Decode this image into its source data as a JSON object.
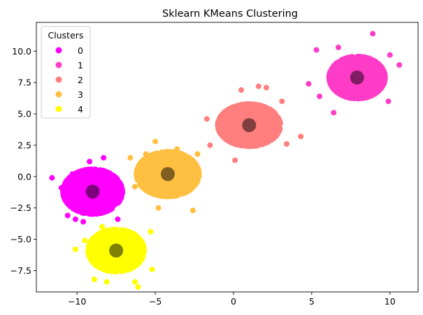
{
  "chart_data": {
    "type": "scatter",
    "title": "Sklearn KMeans Clustering",
    "xlabel": "",
    "ylabel": "",
    "xlim": [
      -12.6,
      11.8
    ],
    "ylim": [
      -9.2,
      12.3
    ],
    "x_ticks": [
      -10,
      -5,
      0,
      5,
      10
    ],
    "x_tick_labels": [
      "−10",
      "−5",
      "0",
      "5",
      "10"
    ],
    "y_ticks": [
      -7.5,
      -5.0,
      -2.5,
      0.0,
      2.5,
      5.0,
      7.5,
      10.0
    ],
    "y_tick_labels": [
      "−7.5",
      "−5.0",
      "−2.5",
      "0.0",
      "2.5",
      "5.0",
      "7.5",
      "10.0"
    ],
    "grid": false,
    "legend": {
      "title": "Clusters",
      "placement": "top-left",
      "entries": [
        "0",
        "1",
        "2",
        "3",
        "4"
      ]
    },
    "series": [
      {
        "name": "0",
        "color": "#ff00ff",
        "center": [
          -9.0,
          -1.2
        ],
        "spread": [
          0.9,
          0.85
        ],
        "outliers": [
          [
            -11.6,
            -0.1
          ],
          [
            -10.3,
            0.2
          ],
          [
            -9.2,
            1.2
          ],
          [
            -8.3,
            1.5
          ],
          [
            -10.6,
            -3.1
          ],
          [
            -10.1,
            -3.4
          ],
          [
            -9.6,
            -3.6
          ],
          [
            -7.4,
            -3.4
          ],
          [
            -11.0,
            -0.9
          ]
        ]
      },
      {
        "name": "1",
        "color": "#ff3cc8",
        "center": [
          7.9,
          7.9
        ],
        "spread": [
          0.85,
          0.8
        ],
        "outliers": [
          [
            8.9,
            11.4
          ],
          [
            10.6,
            8.9
          ],
          [
            5.3,
            10.1
          ],
          [
            4.8,
            7.4
          ],
          [
            5.5,
            6.4
          ],
          [
            6.4,
            5.1
          ],
          [
            9.9,
            6.0
          ],
          [
            6.7,
            10.3
          ],
          [
            10.0,
            9.7
          ]
        ]
      },
      {
        "name": "2",
        "color": "#ff7f7f",
        "center": [
          1.0,
          4.1
        ],
        "spread": [
          0.95,
          0.8
        ],
        "outliers": [
          [
            0.1,
            1.3
          ],
          [
            4.3,
            3.2
          ],
          [
            1.6,
            7.2
          ],
          [
            2.1,
            7.1
          ],
          [
            -1.7,
            4.6
          ],
          [
            3.1,
            6.0
          ],
          [
            0.5,
            6.9
          ],
          [
            -1.5,
            2.5
          ],
          [
            3.4,
            2.6
          ]
        ]
      },
      {
        "name": "3",
        "color": "#ffbf40",
        "center": [
          -4.2,
          0.2
        ],
        "spread": [
          0.95,
          0.85
        ],
        "outliers": [
          [
            -6.6,
            1.5
          ],
          [
            -2.6,
            -2.7
          ],
          [
            -4.8,
            -2.5
          ],
          [
            -5.0,
            2.8
          ],
          [
            -2.3,
            1.8
          ],
          [
            -6.3,
            -0.8
          ],
          [
            -3.6,
            2.2
          ],
          [
            -5.6,
            1.8
          ]
        ]
      },
      {
        "name": "4",
        "color": "#ffff00",
        "center": [
          -7.5,
          -5.9
        ],
        "spread": [
          0.85,
          0.8
        ],
        "outliers": [
          [
            -10.1,
            -5.8
          ],
          [
            -8.9,
            -8.2
          ],
          [
            -6.1,
            -8.8
          ],
          [
            -5.3,
            -4.4
          ],
          [
            -6.3,
            -8.4
          ],
          [
            -5.2,
            -7.4
          ],
          [
            -8.4,
            -4.0
          ],
          [
            -8.1,
            -8.4
          ],
          [
            -9.5,
            -5.1
          ]
        ]
      }
    ],
    "centroids": {
      "color": "#000000",
      "opacity": 0.5,
      "points": [
        [
          -9.0,
          -1.2
        ],
        [
          7.9,
          7.9
        ],
        [
          1.0,
          4.1
        ],
        [
          -4.2,
          0.2
        ],
        [
          -7.5,
          -5.9
        ]
      ]
    }
  }
}
